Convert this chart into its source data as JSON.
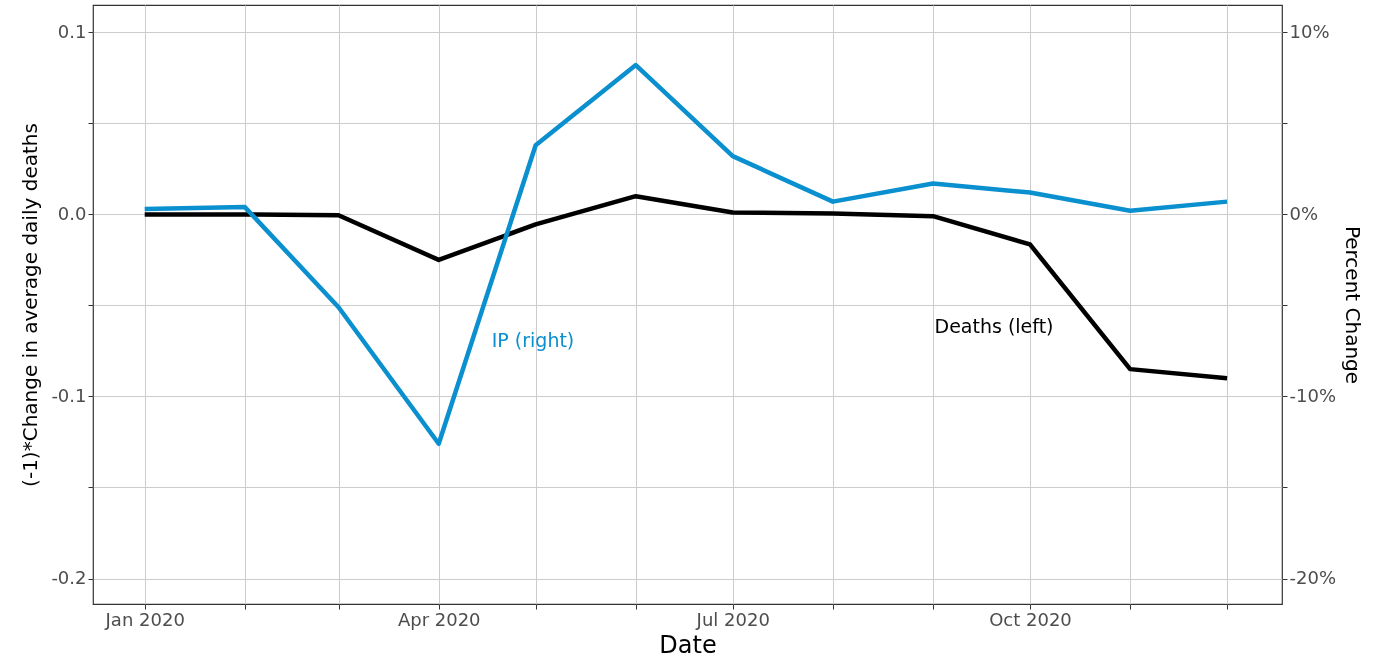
{
  "chart_data": {
    "type": "line",
    "xlabel": "Date",
    "ylabel": "(-1)*Change in average daily deaths",
    "y2label": "Percent Change",
    "x": [
      "2020-01",
      "2020-02",
      "2020-03",
      "2020-04",
      "2020-05",
      "2020-06",
      "2020-07",
      "2020-08",
      "2020-09",
      "2020-10",
      "2020-11",
      "2020-12"
    ],
    "series": [
      {
        "color": "#000000",
        "values": [
          0,
          0,
          -0.0005,
          -0.025,
          -0.0055,
          0.01,
          0.001,
          0.0005,
          -0.001,
          -0.0165,
          -0.085,
          -0.09
        ]
      },
      {
        "color": "#0a8fcf",
        "axis": "y2",
        "values": [
          0.3,
          0.4,
          -5.1,
          -12.6,
          3.8,
          8.2,
          3.2,
          0.7,
          1.7,
          1.2,
          0.2,
          0.7
        ]
      }
    ],
    "annotations": [
      "Deaths (left)",
      "IP (right)"
    ],
    "xlim": [
      "2019-12-16",
      "2020-12-18"
    ],
    "xticks": [
      {
        "value": "2020-01",
        "label": "Jan 2020"
      },
      {
        "value": "2020-02",
        "label": null
      },
      {
        "value": "2020-03",
        "label": null
      },
      {
        "value": "2020-04",
        "label": "Apr 2020"
      },
      {
        "value": "2020-05",
        "label": null
      },
      {
        "value": "2020-06",
        "label": null
      },
      {
        "value": "2020-07",
        "label": "Jul 2020"
      },
      {
        "value": "2020-08",
        "label": null
      },
      {
        "value": "2020-09",
        "label": null
      },
      {
        "value": "2020-10",
        "label": "Oct 2020"
      },
      {
        "value": "2020-11",
        "label": null
      },
      {
        "value": "2020-12",
        "label": null
      }
    ],
    "ylim": [
      -0.214,
      0.115
    ],
    "yticks": [
      {
        "value": -0.2,
        "label": "-0.2"
      },
      {
        "value": -0.15,
        "label": null
      },
      {
        "value": -0.1,
        "label": "-0.1"
      },
      {
        "value": -0.05,
        "label": null
      },
      {
        "value": 0,
        "label": "0.0"
      },
      {
        "value": 0.05,
        "label": null
      },
      {
        "value": 0.1,
        "label": "0.1"
      }
    ],
    "y2lim": [
      -21.4,
      11.5
    ],
    "y2ticks": [
      {
        "value": -20,
        "label": "-20%"
      },
      {
        "value": -15,
        "label": null
      },
      {
        "value": -10,
        "label": "-10%"
      },
      {
        "value": -5,
        "label": null
      },
      {
        "value": 0,
        "label": "0%"
      },
      {
        "value": 5,
        "label": null
      },
      {
        "value": 10,
        "label": "10%"
      }
    ],
    "grid": true,
    "line_style": "solid",
    "marker": "none"
  }
}
